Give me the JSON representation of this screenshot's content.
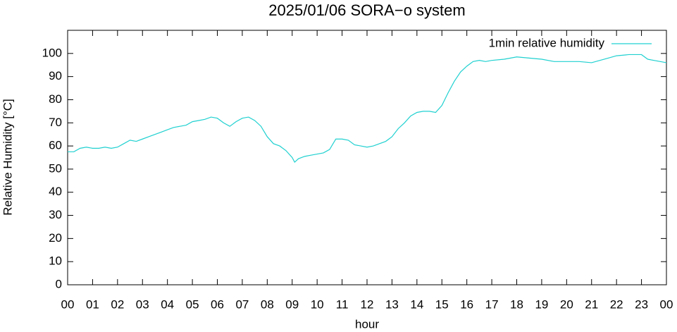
{
  "chart_data": {
    "type": "line",
    "title": "2025/01/06 SORA−o system",
    "xlabel": "hour",
    "ylabel": "Relative Humidity [°C]",
    "x": [
      0,
      0.25,
      0.5,
      0.75,
      1,
      1.25,
      1.5,
      1.75,
      2,
      2.25,
      2.5,
      2.75,
      3,
      3.25,
      3.5,
      3.75,
      4,
      4.25,
      4.5,
      4.75,
      5,
      5.25,
      5.5,
      5.75,
      6,
      6.25,
      6.5,
      6.75,
      7,
      7.25,
      7.5,
      7.75,
      8,
      8.25,
      8.5,
      8.75,
      9,
      9.1,
      9.25,
      9.5,
      9.75,
      10,
      10.25,
      10.5,
      10.75,
      11,
      11.25,
      11.5,
      11.75,
      12,
      12.25,
      12.5,
      12.75,
      13,
      13.25,
      13.5,
      13.75,
      14,
      14.25,
      14.5,
      14.75,
      15,
      15.25,
      15.5,
      15.75,
      16,
      16.25,
      16.5,
      16.75,
      17,
      17.5,
      18,
      18.5,
      19,
      19.5,
      20,
      20.5,
      21,
      21.5,
      22,
      22.5,
      23,
      23.25,
      23.5,
      24
    ],
    "series": [
      {
        "name": "1min relative humidity",
        "color": "#20d0d0",
        "values": [
          57.5,
          57.5,
          59,
          59.5,
          59,
          59,
          59.5,
          59,
          59.5,
          61,
          62.5,
          62,
          63,
          64,
          65,
          66,
          67,
          68,
          68.5,
          69,
          70.5,
          71,
          71.5,
          72.5,
          72,
          70,
          68.5,
          70.5,
          72,
          72.5,
          71,
          68.5,
          64,
          61,
          60,
          58,
          55,
          53,
          54.5,
          55.5,
          56,
          56.5,
          57,
          58.5,
          63,
          63,
          62.5,
          60.5,
          60,
          59.5,
          60,
          61,
          62,
          64,
          67.5,
          70,
          73,
          74.5,
          75,
          75,
          74.5,
          77.5,
          83,
          88,
          92,
          94.5,
          96.5,
          97,
          96.5,
          97,
          97.5,
          98.5,
          98,
          97.5,
          96.5,
          96.5,
          96.5,
          96,
          97.5,
          99,
          99.5,
          99.5,
          97.5,
          97,
          96
        ]
      }
    ],
    "xlim": [
      0,
      24
    ],
    "xticks": [
      {
        "value": 0,
        "label": "00"
      },
      {
        "value": 1,
        "label": "01"
      },
      {
        "value": 2,
        "label": "02"
      },
      {
        "value": 3,
        "label": "03"
      },
      {
        "value": 4,
        "label": "04"
      },
      {
        "value": 5,
        "label": "05"
      },
      {
        "value": 6,
        "label": "06"
      },
      {
        "value": 7,
        "label": "07"
      },
      {
        "value": 8,
        "label": "08"
      },
      {
        "value": 9,
        "label": "09"
      },
      {
        "value": 10,
        "label": "10"
      },
      {
        "value": 11,
        "label": "11"
      },
      {
        "value": 12,
        "label": "12"
      },
      {
        "value": 13,
        "label": "13"
      },
      {
        "value": 14,
        "label": "14"
      },
      {
        "value": 15,
        "label": "15"
      },
      {
        "value": 16,
        "label": "16"
      },
      {
        "value": 17,
        "label": "17"
      },
      {
        "value": 18,
        "label": "18"
      },
      {
        "value": 19,
        "label": "19"
      },
      {
        "value": 20,
        "label": "20"
      },
      {
        "value": 21,
        "label": "21"
      },
      {
        "value": 22,
        "label": "22"
      },
      {
        "value": 23,
        "label": "23"
      },
      {
        "value": 24,
        "label": "00"
      }
    ],
    "ylim": [
      0,
      110
    ],
    "yticks": [
      0,
      10,
      20,
      30,
      40,
      50,
      60,
      70,
      80,
      90,
      100
    ],
    "legend": "top right"
  }
}
